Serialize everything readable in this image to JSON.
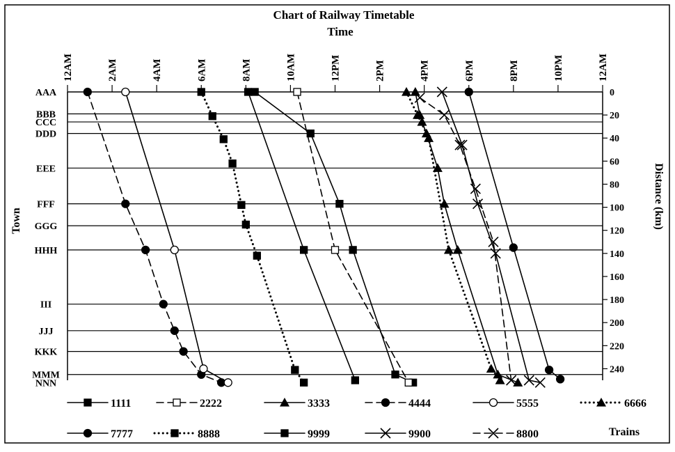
{
  "chart_data": {
    "type": "line",
    "title": "Chart of Railway Timetable",
    "xlabel": "Time",
    "ylabel": "Town",
    "y2label": "Distance (km)",
    "legend_title": "Trains",
    "x_unit": "hours since midnight",
    "xlim": [
      0,
      24
    ],
    "ylim": [
      0,
      250
    ],
    "x_ticks": [
      0,
      2,
      4,
      6,
      8,
      10,
      12,
      14,
      16,
      18,
      20,
      22,
      24
    ],
    "x_tick_labels": [
      "12AM",
      "2AM",
      "4AM",
      "6AM",
      "8AM",
      "10AM",
      "12PM",
      "2PM",
      "4PM",
      "6PM",
      "8PM",
      "10PM",
      "12AM"
    ],
    "distance_ticks": [
      0,
      20,
      40,
      60,
      80,
      100,
      120,
      140,
      160,
      180,
      200,
      220,
      240
    ],
    "towns": [
      {
        "name": "AAA",
        "distance": 0
      },
      {
        "name": "BBB",
        "distance": 19
      },
      {
        "name": "CCC",
        "distance": 26
      },
      {
        "name": "DDD",
        "distance": 36
      },
      {
        "name": "EEE",
        "distance": 66
      },
      {
        "name": "FFF",
        "distance": 97
      },
      {
        "name": "GGG",
        "distance": 116
      },
      {
        "name": "HHH",
        "distance": 137
      },
      {
        "name": "III",
        "distance": 184
      },
      {
        "name": "JJJ",
        "distance": 207
      },
      {
        "name": "KKK",
        "distance": 225
      },
      {
        "name": "MMM",
        "distance": 245
      },
      {
        "name": "NNN",
        "distance": 252
      }
    ],
    "series": [
      {
        "name": "1111",
        "line": "solid",
        "marker": "square-filled",
        "points": [
          [
            8.4,
            0
          ],
          [
            10.9,
            36
          ],
          [
            12.2,
            97
          ],
          [
            12.8,
            137
          ],
          [
            14.7,
            245
          ],
          [
            15.5,
            252
          ]
        ]
      },
      {
        "name": "2222",
        "line": "dashed",
        "marker": "square-open",
        "points": [
          [
            10.3,
            0
          ],
          [
            12.0,
            137
          ],
          [
            15.3,
            252
          ]
        ]
      },
      {
        "name": "3333",
        "line": "solid",
        "marker": "triangle-filled",
        "points": [
          [
            15.6,
            0
          ],
          [
            15.8,
            20
          ],
          [
            15.9,
            26
          ],
          [
            16.1,
            36
          ],
          [
            16.6,
            66
          ],
          [
            16.9,
            97
          ],
          [
            17.5,
            137
          ],
          [
            19.3,
            245
          ],
          [
            20.2,
            252
          ]
        ]
      },
      {
        "name": "4444",
        "line": "dashed",
        "marker": "circle-filled",
        "points": [
          [
            0.9,
            0
          ],
          [
            2.6,
            97
          ],
          [
            3.5,
            137
          ],
          [
            4.3,
            184
          ],
          [
            4.8,
            207
          ],
          [
            5.2,
            225
          ],
          [
            6.0,
            245
          ],
          [
            6.9,
            252
          ]
        ]
      },
      {
        "name": "5555",
        "line": "solid",
        "marker": "circle-open",
        "points": [
          [
            2.6,
            0
          ],
          [
            4.8,
            137
          ],
          [
            6.1,
            240
          ],
          [
            7.2,
            252
          ]
        ]
      },
      {
        "name": "6666",
        "line": "dotted",
        "marker": "triangle-filled",
        "points": [
          [
            15.2,
            0
          ],
          [
            15.7,
            20
          ],
          [
            16.2,
            40
          ],
          [
            17.1,
            137
          ],
          [
            19.0,
            240
          ],
          [
            19.4,
            250
          ]
        ]
      },
      {
        "name": "7777",
        "line": "solid",
        "marker": "circle-filled",
        "points": [
          [
            18.0,
            0
          ],
          [
            20.0,
            135
          ],
          [
            21.6,
            241
          ],
          [
            22.1,
            249
          ]
        ]
      },
      {
        "name": "8888",
        "line": "dotted",
        "marker": "square-filled",
        "points": [
          [
            6.0,
            0
          ],
          [
            6.5,
            21
          ],
          [
            7.0,
            41
          ],
          [
            7.4,
            62
          ],
          [
            7.8,
            98
          ],
          [
            8.0,
            115
          ],
          [
            8.5,
            142
          ],
          [
            10.2,
            241
          ],
          [
            10.6,
            252
          ]
        ]
      },
      {
        "name": "9999",
        "line": "solid",
        "marker": "square-filled",
        "points": [
          [
            8.1,
            0
          ],
          [
            10.6,
            137
          ],
          [
            12.9,
            250
          ]
        ]
      },
      {
        "name": "9900",
        "line": "solid",
        "marker": "x",
        "points": [
          [
            16.8,
            0
          ],
          [
            17.7,
            46
          ],
          [
            18.4,
            97
          ],
          [
            19.2,
            140
          ],
          [
            20.7,
            250
          ],
          [
            21.2,
            252
          ]
        ]
      },
      {
        "name": "8800",
        "line": "dashed",
        "marker": "x",
        "points": [
          [
            15.8,
            5
          ],
          [
            16.9,
            20
          ],
          [
            17.6,
            46
          ],
          [
            18.3,
            84
          ],
          [
            19.1,
            130
          ],
          [
            19.9,
            250
          ]
        ]
      }
    ],
    "legend": [
      [
        "1111",
        "2222",
        "3333",
        "4444",
        "5555",
        "6666"
      ],
      [
        "7777",
        "8888",
        "9999",
        "9900",
        "8800"
      ]
    ]
  }
}
